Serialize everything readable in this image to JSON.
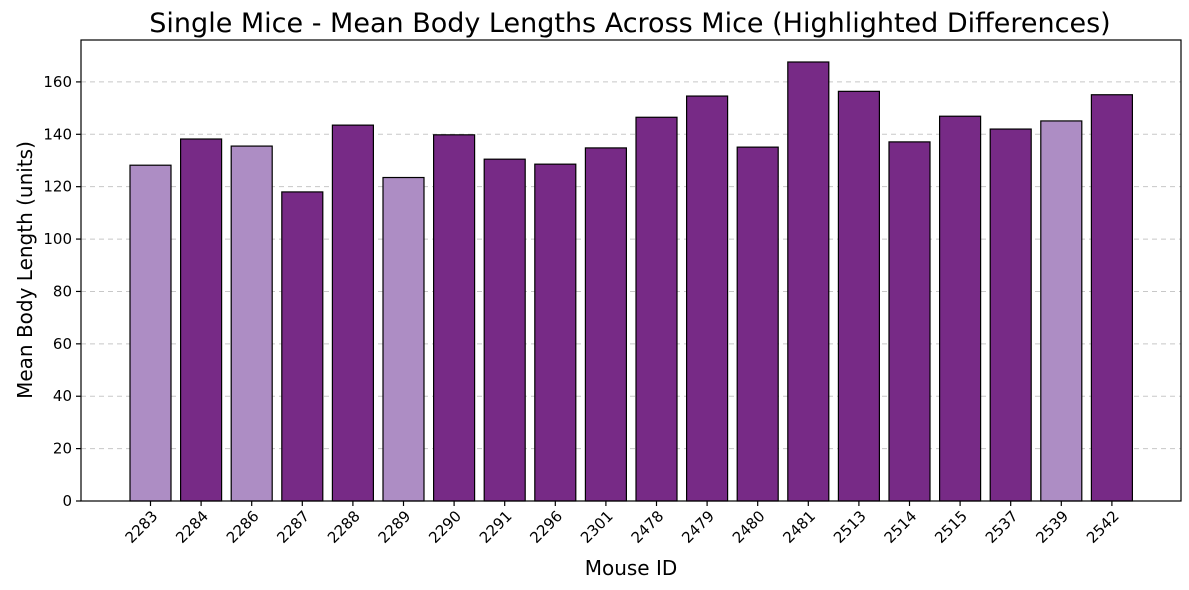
{
  "chart_data": {
    "type": "bar",
    "title": "Single Mice - Mean Body Lengths Across Mice (Highlighted Differences)",
    "xlabel": "Mouse ID",
    "ylabel": "Mean Body Length (units)",
    "ylim": [
      0,
      176
    ],
    "yticks": [
      0,
      20,
      40,
      60,
      80,
      100,
      120,
      140,
      160
    ],
    "grid": "horizontal-dashed",
    "categories": [
      "2283",
      "2284",
      "2286",
      "2287",
      "2288",
      "2289",
      "2290",
      "2291",
      "2296",
      "2301",
      "2478",
      "2479",
      "2480",
      "2481",
      "2513",
      "2514",
      "2515",
      "2537",
      "2539",
      "2542"
    ],
    "values": [
      128.2,
      138.2,
      135.5,
      118.0,
      143.5,
      123.5,
      139.8,
      130.5,
      128.6,
      134.8,
      146.5,
      154.6,
      135.1,
      167.6,
      156.4,
      137.1,
      146.9,
      142.0,
      145.1,
      155.1
    ],
    "highlighted": [
      true,
      false,
      true,
      false,
      false,
      true,
      false,
      false,
      false,
      false,
      false,
      false,
      false,
      false,
      false,
      false,
      false,
      false,
      true,
      false
    ],
    "colors": {
      "normal": "#772a86",
      "highlight": "#ad8dc4",
      "edge": "#000000"
    }
  }
}
